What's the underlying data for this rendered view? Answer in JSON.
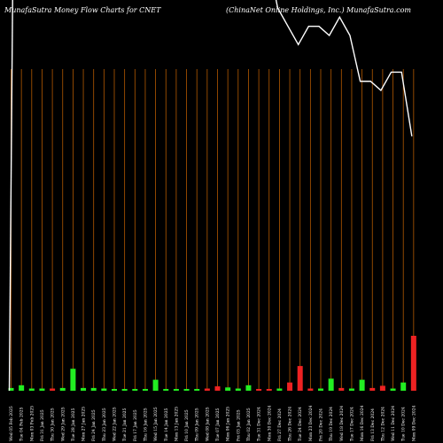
{
  "chart_data": {
    "type": "bar",
    "title_left": "MunafaSutra  Money Flow  Charts for CNET",
    "title_right": "(ChinaNet Online    Holdings, Inc.) MunafaSutra.com",
    "categories": [
      "Wed 05 Feb 2025",
      "Tue 04 Feb 2025",
      "Mon 03 Feb 2025",
      "Fri 31 Jan 2025",
      "Thu 30 Jan 2025",
      "Wed 29 Jan 2025",
      "Tue 28 Jan 2025",
      "Mon 27 Jan 2025",
      "Fri 24 Jan 2025",
      "Thu 23 Jan 2025",
      "Wed 22 Jan 2025",
      "Tue 21 Jan 2025",
      "Fri 17 Jan 2025",
      "Thu 16 Jan 2025",
      "Wed 15 Jan 2025",
      "Tue 14 Jan 2025",
      "Mon 13 Jan 2025",
      "Fri 10 Jan 2025",
      "Thu 09 Jan 2025",
      "Wed 08 Jan 2025",
      "Tue 07 Jan 2025",
      "Mon 06 Jan 2025",
      "Fri 03 Jan 2025",
      "Thu 02 Jan 2025",
      "Tue 31 Dec 2024",
      "Mon 30 Dec 2024",
      "Fri 27 Dec 2024",
      "Thu 26 Dec 2024",
      "Tue 24 Dec 2024",
      "Mon 23 Dec 2024",
      "Fri 20 Dec 2024",
      "Thu 19 Dec 2024",
      "Wed 18 Dec 2024",
      "Tue 17 Dec 2024",
      "Mon 16 Dec 2024",
      "Fri 13 Dec 2024",
      "Thu 12 Dec 2024",
      "Wed 11 Dec 2024",
      "Tue 10 Dec 2024",
      "Mon 09 Dec 2024"
    ],
    "volume_colors": [
      "green",
      "green",
      "green",
      "green",
      "red",
      "green",
      "green",
      "green",
      "green",
      "green",
      "green",
      "green",
      "green",
      "green",
      "green",
      "green",
      "green",
      "green",
      "green",
      "red",
      "red",
      "green",
      "green",
      "green",
      "red",
      "red",
      "green",
      "red",
      "red",
      "red",
      "green",
      "green",
      "red",
      "green",
      "green",
      "red",
      "red",
      "green",
      "green",
      "red"
    ],
    "volume_values": [
      0.05,
      0.1,
      0.04,
      0.04,
      0.04,
      0.05,
      0.4,
      0.05,
      0.05,
      0.04,
      0.03,
      0.03,
      0.03,
      0.03,
      0.2,
      0.03,
      0.03,
      0.03,
      0.03,
      0.04,
      0.08,
      0.06,
      0.04,
      0.1,
      0.03,
      0.03,
      0.04,
      0.15,
      0.45,
      0.04,
      0.04,
      0.22,
      0.05,
      0.04,
      0.2,
      0.05,
      0.09,
      0.04,
      0.15,
      1.0
    ],
    "price_values": [
      null,
      null,
      null,
      null,
      null,
      null,
      null,
      null,
      null,
      null,
      null,
      null,
      null,
      null,
      null,
      null,
      null,
      null,
      null,
      null,
      null,
      null,
      null,
      null,
      null,
      null,
      100,
      96,
      92,
      96,
      96,
      94,
      98,
      94,
      84,
      84,
      82,
      86,
      86,
      72
    ],
    "price_spike": 160,
    "ylim": [
      65,
      100
    ],
    "colors": {
      "background": "#000000",
      "gridline": "#b35900",
      "up": "#22ee22",
      "down": "#ee2222",
      "line": "#ffffff",
      "text": "#ffffff"
    }
  }
}
